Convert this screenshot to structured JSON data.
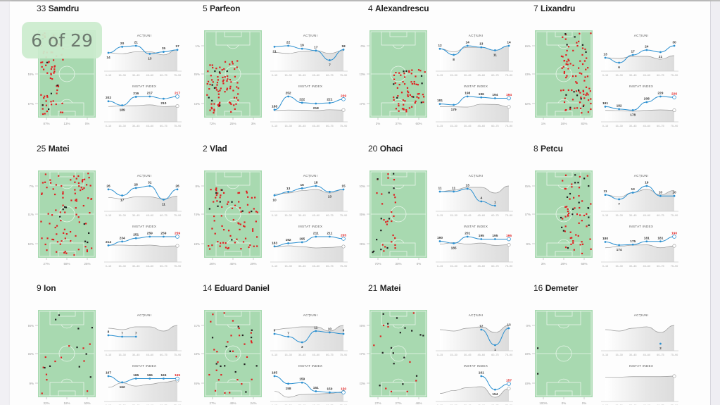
{
  "page_indicator": "6 of 29",
  "colors": {
    "pitch": "#a8d9b0",
    "line_blue": "#2a8fd0",
    "dot_red": "#e02020",
    "dot_black": "#222222",
    "avg_gray": "#999999",
    "highlight_red": "#e02020"
  },
  "chart_labels": {
    "actions_title": "ACȚIUNI",
    "index_title": "INSTAT INDEX",
    "intervals": [
      "0–15",
      "15–30",
      "30–45",
      "45–60",
      "60–75",
      "75–90"
    ]
  },
  "players": [
    {
      "number": "33",
      "name": "Samdru",
      "pitch_y_labels": [
        "",
        "48%",
        "37%"
      ],
      "pitch_x_labels": [
        "87%",
        "13%",
        "0%"
      ],
      "actions": [
        14,
        20,
        21,
        13,
        15,
        17
      ],
      "actions_avg": [
        14,
        13,
        15,
        15,
        12,
        17
      ],
      "index": [
        202,
        189,
        216,
        217,
        210,
        217
      ],
      "index_final": "217",
      "dots": {
        "red": 70,
        "black": 6,
        "zone": "left"
      }
    },
    {
      "number": "5",
      "name": "Parfeon",
      "pitch_y_labels": [
        "1%",
        "35%",
        "64%"
      ],
      "pitch_x_labels": [
        "72%",
        "25%",
        "3%"
      ],
      "actions": [
        21,
        22,
        19,
        17,
        7,
        18
      ],
      "actions_avg": [
        15,
        14,
        16,
        17,
        14,
        17
      ],
      "index": [
        188,
        252,
        222,
        218,
        221,
        239
      ],
      "index_final": "239",
      "dots": {
        "red": 80,
        "black": 8,
        "zone": "left-low"
      }
    },
    {
      "number": "4",
      "name": "Alexandrescu",
      "pitch_y_labels": [
        "0%",
        "43%",
        "57%"
      ],
      "pitch_x_labels": [
        "3%",
        "37%",
        "60%"
      ],
      "actions": [
        12,
        8,
        14,
        13,
        11,
        14
      ],
      "actions_avg": [
        12,
        10,
        13,
        13,
        11,
        14
      ],
      "index": [
        181,
        179,
        198,
        196,
        194,
        194
      ],
      "index_final": "194",
      "dots": {
        "red": 60,
        "black": 8,
        "zone": "right-low"
      }
    },
    {
      "number": "7",
      "name": "Lixandru",
      "pitch_y_labels": [
        "16%",
        "53%",
        "32%"
      ],
      "pitch_x_labels": [
        "1%",
        "16%",
        "83%"
      ],
      "actions": [
        13,
        6,
        17,
        24,
        21,
        30
      ],
      "actions_avg": [
        13,
        12,
        15,
        15,
        11,
        16
      ],
      "index": [
        191,
        182,
        178,
        208,
        229,
        226
      ],
      "index_final": "226",
      "dots": {
        "red": 85,
        "black": 12,
        "zone": "right"
      }
    },
    {
      "number": "25",
      "name": "Matei",
      "pitch_y_labels": [
        "7%",
        "61%",
        "32%"
      ],
      "pitch_x_labels": [
        "27%",
        "58%",
        "25%"
      ],
      "actions": [
        26,
        17,
        28,
        31,
        11,
        26
      ],
      "actions_avg": [
        14,
        12,
        15,
        15,
        12,
        16
      ],
      "index": [
        214,
        234,
        251,
        259,
        259,
        259
      ],
      "index_final": "259",
      "dots": {
        "red": 90,
        "black": 8,
        "zone": "all"
      }
    },
    {
      "number": "2",
      "name": "Vlad",
      "pitch_y_labels": [
        "8%",
        "74%",
        "18%"
      ],
      "pitch_x_labels": [
        "26%",
        "45%",
        "29%"
      ],
      "actions": [
        10,
        13,
        16,
        18,
        13,
        15
      ],
      "actions_avg": [
        11,
        12,
        14,
        15,
        12,
        15
      ],
      "index": [
        183,
        192,
        195,
        211,
        211,
        205
      ],
      "index_final": "205",
      "dots": {
        "red": 75,
        "black": 9,
        "zone": "center"
      }
    },
    {
      "number": "20",
      "name": "Ohaci",
      "pitch_y_labels": [
        "40%",
        "35%",
        "25%"
      ],
      "pitch_x_labels": [
        "70%",
        "30%",
        "0%"
      ],
      "actions": [
        11,
        11,
        13,
        4,
        1
      ],
      "actions_avg": [
        11,
        12,
        14,
        14,
        10,
        15
      ],
      "index": [
        190,
        185,
        201,
        195,
        195,
        195
      ],
      "index_final": "195",
      "dots": {
        "red": 25,
        "black": 12,
        "zone": "left"
      }
    },
    {
      "number": "8",
      "name": "Petcu",
      "pitch_y_labels": [
        "25%",
        "67%",
        "9%"
      ],
      "pitch_x_labels": [
        "3%",
        "29%",
        "68%"
      ],
      "actions": [
        11,
        7,
        13,
        19,
        10,
        10
      ],
      "actions_avg": [
        11,
        9,
        13,
        16,
        11,
        15
      ],
      "index": [
        180,
        174,
        175,
        181,
        181,
        190
      ],
      "index_final": "190",
      "dots": {
        "red": 50,
        "black": 18,
        "zone": "right"
      }
    },
    {
      "number": "9",
      "name": "Ion",
      "pitch_y_labels": [
        "36%",
        "55%",
        "9%"
      ],
      "pitch_x_labels": [
        "32%",
        "18%",
        "50%"
      ],
      "actions": [
        8,
        7,
        7
      ],
      "actions_avg": [
        13,
        12,
        14,
        14,
        11,
        15
      ],
      "index": [
        167,
        162,
        165,
        165,
        165,
        165
      ],
      "index_final": "165",
      "dots": {
        "red": 12,
        "black": 10,
        "zone": "all"
      }
    },
    {
      "number": "14",
      "name": "Eduard Daniel",
      "pitch_y_labels": [
        "51%",
        "53%",
        "26%"
      ],
      "pitch_x_labels": [
        "27%",
        "49%",
        "24%"
      ],
      "actions": [
        9,
        7,
        3,
        11,
        10,
        9
      ],
      "actions_avg": [
        12,
        13,
        14,
        14,
        11,
        15
      ],
      "index": [
        165,
        158,
        159,
        151,
        150,
        150
      ],
      "index_final": "150",
      "dots": {
        "red": 28,
        "black": 14,
        "zone": "all"
      }
    },
    {
      "number": "21",
      "name": "Matei",
      "pitch_y_labels": [
        "46%",
        "47%",
        "33%"
      ],
      "pitch_x_labels": [
        "27%",
        "27%",
        "46%"
      ],
      "actions": [
        null,
        null,
        null,
        12,
        1,
        13
      ],
      "actions_avg": [
        12,
        11,
        13,
        14,
        10,
        15
      ],
      "index": [
        null,
        null,
        null,
        161,
        154,
        157
      ],
      "index_final": "157",
      "dots": {
        "red": 10,
        "black": 16,
        "zone": "all"
      }
    },
    {
      "number": "16",
      "name": "Demeter",
      "pitch_y_labels": [
        "0%",
        "50%",
        "50%"
      ],
      "pitch_x_labels": [
        "100%",
        "0%",
        "0%"
      ],
      "actions": [
        null,
        null,
        null,
        null,
        2,
        null
      ],
      "actions_avg": [
        12,
        11,
        13,
        14,
        10,
        15
      ],
      "index": [
        null,
        null,
        null,
        null,
        null,
        null
      ],
      "index_final": "",
      "dots": {
        "red": 0,
        "black": 2,
        "zone": "left-edge"
      }
    }
  ]
}
